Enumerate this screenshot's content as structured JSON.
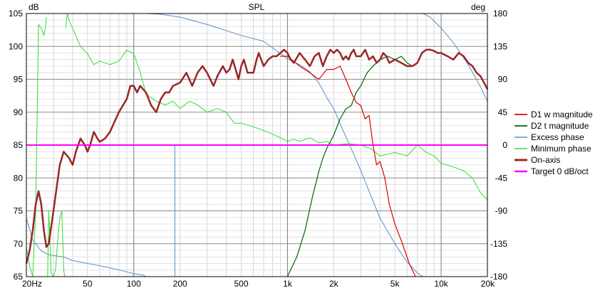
{
  "chart_data": {
    "type": "line",
    "title": "SPL",
    "y_left_label": "dB",
    "y_right_label": "deg",
    "x_scale": "log",
    "xlim": [
      20,
      20000
    ],
    "ylim": [
      65,
      105
    ],
    "y2lim": [
      -180,
      180
    ],
    "grid": true,
    "legend_position": "right",
    "x_ticks": [
      {
        "v": 20,
        "label": "20Hz"
      },
      {
        "v": 50,
        "label": "50"
      },
      {
        "v": 100,
        "label": "100"
      },
      {
        "v": 200,
        "label": "200"
      },
      {
        "v": 500,
        "label": "500"
      },
      {
        "v": 1000,
        "label": "1k"
      },
      {
        "v": 2000,
        "label": "2k"
      },
      {
        "v": 5000,
        "label": "5k"
      },
      {
        "v": 10000,
        "label": "10k"
      },
      {
        "v": 20000,
        "label": "20k"
      }
    ],
    "y_ticks": [
      65,
      70,
      75,
      80,
      85,
      90,
      95,
      100,
      105
    ],
    "y2_ticks": [
      -180,
      -135,
      -90,
      -45,
      0,
      45,
      90,
      135,
      180
    ],
    "series": [
      {
        "name": "D1 w magnitude",
        "color": "#e00000",
        "axis": "left",
        "width": 1.2,
        "points": [
          [
            900,
            98.5
          ],
          [
            1000,
            98.5
          ],
          [
            1200,
            97
          ],
          [
            1400,
            96
          ],
          [
            1600,
            95
          ],
          [
            1800,
            96.5
          ],
          [
            2000,
            96.5
          ],
          [
            2200,
            97
          ],
          [
            2400,
            95
          ],
          [
            2600,
            93
          ],
          [
            2800,
            91.5
          ],
          [
            3000,
            91
          ],
          [
            3200,
            89
          ],
          [
            3400,
            89.5
          ],
          [
            3600,
            85
          ],
          [
            3800,
            82
          ],
          [
            4000,
            82.5
          ],
          [
            4300,
            80
          ],
          [
            4600,
            76
          ],
          [
            5000,
            73
          ],
          [
            5600,
            70
          ],
          [
            6200,
            67
          ],
          [
            6800,
            65
          ]
        ]
      },
      {
        "name": "D2 t magnitude",
        "color": "#006400",
        "axis": "left",
        "width": 1.2,
        "points": [
          [
            1000,
            65
          ],
          [
            1150,
            68
          ],
          [
            1300,
            72
          ],
          [
            1450,
            77
          ],
          [
            1600,
            81
          ],
          [
            1700,
            83
          ],
          [
            1800,
            84.5
          ],
          [
            1900,
            85.5
          ],
          [
            2000,
            86.5
          ],
          [
            2200,
            89
          ],
          [
            2400,
            90.5
          ],
          [
            2600,
            91
          ],
          [
            2800,
            93
          ],
          [
            3000,
            94
          ],
          [
            3300,
            96
          ],
          [
            3600,
            97
          ],
          [
            4000,
            98
          ],
          [
            4500,
            98.5
          ],
          [
            5000,
            98
          ],
          [
            5500,
            98.5
          ],
          [
            6000,
            97.5
          ],
          [
            6500,
            97
          ],
          [
            7000,
            97.5
          ],
          [
            7500,
            99
          ],
          [
            8000,
            99.5
          ],
          [
            8500,
            99.5
          ],
          [
            9000,
            99.3
          ],
          [
            9500,
            99
          ],
          [
            10000,
            99
          ],
          [
            11000,
            98.5
          ],
          [
            12000,
            98
          ],
          [
            13000,
            99
          ],
          [
            14000,
            98.5
          ],
          [
            15000,
            97.5
          ],
          [
            16000,
            97
          ],
          [
            17000,
            96
          ],
          [
            18000,
            95.5
          ],
          [
            19000,
            94.5
          ],
          [
            20000,
            93.5
          ]
        ]
      },
      {
        "name": "Excess phase",
        "color": "#5b8fc7",
        "axis": "right",
        "width": 1.0,
        "points": [
          [
            20,
            -100
          ],
          [
            22,
            -130
          ],
          [
            25,
            -145
          ],
          [
            28,
            -150
          ],
          [
            32,
            -152
          ],
          [
            35,
            -153
          ],
          [
            40,
            -158
          ],
          [
            50,
            -162
          ],
          [
            60,
            -165
          ],
          [
            70,
            -168
          ],
          [
            85,
            -172
          ],
          [
            100,
            -176
          ],
          [
            115,
            -178
          ],
          [
            120,
            -180
          ],
          [
            120,
            180
          ],
          [
            150,
            179
          ],
          [
            200,
            175
          ],
          [
            300,
            165
          ],
          [
            500,
            150
          ],
          [
            700,
            142
          ],
          [
            1000,
            118
          ],
          [
            1200,
            110
          ],
          [
            1400,
            100
          ],
          [
            1600,
            85
          ],
          [
            1800,
            65
          ],
          [
            2000,
            50
          ],
          [
            2300,
            20
          ],
          [
            2600,
            -5
          ],
          [
            3000,
            -35
          ],
          [
            3500,
            -70
          ],
          [
            4000,
            -100
          ],
          [
            5000,
            -135
          ],
          [
            6000,
            -160
          ],
          [
            7000,
            -175
          ],
          [
            7600,
            -180
          ],
          [
            7600,
            180
          ],
          [
            8500,
            175
          ],
          [
            10000,
            160
          ],
          [
            12000,
            140
          ],
          [
            15000,
            110
          ],
          [
            18000,
            80
          ],
          [
            20000,
            60
          ]
        ]
      },
      {
        "name": "Minimum phase",
        "color": "#33dd33",
        "axis": "right",
        "width": 1.0,
        "points": [
          [
            20,
            -140
          ],
          [
            21,
            -165
          ],
          [
            22,
            -180
          ],
          [
            23,
            -90
          ],
          [
            24,
            165
          ],
          [
            25,
            160
          ],
          [
            26,
            150
          ],
          [
            26.5,
            160
          ],
          [
            27,
            175
          ],
          [
            27.5,
            -180
          ],
          [
            28,
            -90
          ],
          [
            29,
            -175
          ],
          [
            30,
            -180
          ],
          [
            31,
            -170
          ],
          [
            32,
            -130
          ],
          [
            33,
            -100
          ],
          [
            34,
            -90
          ],
          [
            35,
            -170
          ],
          [
            35.5,
            -180
          ],
          [
            36,
            160
          ],
          [
            37,
            180
          ],
          [
            38,
            170
          ],
          [
            40,
            160
          ],
          [
            45,
            135
          ],
          [
            50,
            125
          ],
          [
            55,
            110
          ],
          [
            60,
            115
          ],
          [
            70,
            110
          ],
          [
            80,
            115
          ],
          [
            90,
            130
          ],
          [
            100,
            125
          ],
          [
            110,
            100
          ],
          [
            120,
            70
          ],
          [
            140,
            60
          ],
          [
            160,
            55
          ],
          [
            180,
            60
          ],
          [
            200,
            50
          ],
          [
            230,
            60
          ],
          [
            260,
            55
          ],
          [
            300,
            45
          ],
          [
            350,
            50
          ],
          [
            400,
            45
          ],
          [
            450,
            30
          ],
          [
            500,
            30
          ],
          [
            600,
            25
          ],
          [
            700,
            20
          ],
          [
            800,
            15
          ],
          [
            900,
            10
          ],
          [
            1000,
            5
          ],
          [
            1100,
            8
          ],
          [
            1200,
            5
          ],
          [
            1400,
            10
          ],
          [
            1600,
            3
          ],
          [
            1800,
            5
          ],
          [
            2000,
            0
          ],
          [
            2500,
            2
          ],
          [
            3000,
            0
          ],
          [
            3500,
            -5
          ],
          [
            4000,
            -15
          ],
          [
            5000,
            -10
          ],
          [
            6000,
            -15
          ],
          [
            7000,
            0
          ],
          [
            8000,
            -10
          ],
          [
            9000,
            -15
          ],
          [
            10000,
            -25
          ],
          [
            12000,
            -30
          ],
          [
            14000,
            -35
          ],
          [
            16000,
            -45
          ],
          [
            18000,
            -65
          ],
          [
            20000,
            -75
          ]
        ]
      },
      {
        "name": "On-axis",
        "color": "#9b2626",
        "axis": "left",
        "width": 2.5,
        "points": [
          [
            20,
            67
          ],
          [
            21,
            69
          ],
          [
            22,
            72
          ],
          [
            23,
            76
          ],
          [
            24,
            78
          ],
          [
            25,
            76
          ],
          [
            26,
            72
          ],
          [
            27,
            69.5
          ],
          [
            28,
            70
          ],
          [
            30,
            75
          ],
          [
            33,
            82
          ],
          [
            35,
            84
          ],
          [
            38,
            83
          ],
          [
            40,
            82
          ],
          [
            42,
            84
          ],
          [
            45,
            86
          ],
          [
            48,
            85
          ],
          [
            50,
            84
          ],
          [
            52,
            85
          ],
          [
            55,
            87
          ],
          [
            58,
            86
          ],
          [
            60,
            85.5
          ],
          [
            65,
            86
          ],
          [
            70,
            87
          ],
          [
            80,
            90
          ],
          [
            90,
            92
          ],
          [
            95,
            94
          ],
          [
            100,
            94
          ],
          [
            105,
            93
          ],
          [
            110,
            94
          ],
          [
            120,
            93
          ],
          [
            130,
            91
          ],
          [
            140,
            90
          ],
          [
            150,
            92
          ],
          [
            160,
            93
          ],
          [
            170,
            93
          ],
          [
            180,
            94
          ],
          [
            200,
            94.5
          ],
          [
            220,
            96
          ],
          [
            240,
            94
          ],
          [
            260,
            96
          ],
          [
            280,
            97
          ],
          [
            300,
            96
          ],
          [
            330,
            94
          ],
          [
            350,
            95.5
          ],
          [
            380,
            97
          ],
          [
            400,
            96
          ],
          [
            420,
            96.5
          ],
          [
            440,
            98
          ],
          [
            460,
            96.5
          ],
          [
            480,
            95
          ],
          [
            500,
            97
          ],
          [
            520,
            98
          ],
          [
            550,
            96
          ],
          [
            600,
            96
          ],
          [
            630,
            98
          ],
          [
            650,
            99
          ],
          [
            700,
            97
          ],
          [
            750,
            98
          ],
          [
            800,
            98.5
          ],
          [
            850,
            98.5
          ],
          [
            900,
            99
          ],
          [
            950,
            99.5
          ],
          [
            1000,
            99
          ],
          [
            1050,
            98
          ],
          [
            1100,
            97.5
          ],
          [
            1200,
            99
          ],
          [
            1300,
            98
          ],
          [
            1400,
            97
          ],
          [
            1500,
            98.5
          ],
          [
            1600,
            99
          ],
          [
            1700,
            97
          ],
          [
            1800,
            98.5
          ],
          [
            1900,
            99.5
          ],
          [
            2000,
            99
          ],
          [
            2100,
            99.5
          ],
          [
            2200,
            99
          ],
          [
            2300,
            98
          ],
          [
            2400,
            98.5
          ],
          [
            2500,
            98
          ],
          [
            2600,
            99
          ],
          [
            2700,
            99.5
          ],
          [
            2800,
            98.5
          ],
          [
            3000,
            98.5
          ],
          [
            3200,
            99.5
          ],
          [
            3400,
            98
          ],
          [
            3600,
            98.5
          ],
          [
            3800,
            97.5
          ],
          [
            4000,
            98
          ],
          [
            4200,
            99
          ],
          [
            4400,
            98.5
          ],
          [
            4600,
            97.5
          ],
          [
            5000,
            98
          ],
          [
            5500,
            97.5
          ],
          [
            6000,
            97
          ],
          [
            6500,
            97
          ],
          [
            7000,
            97.5
          ],
          [
            7500,
            99
          ],
          [
            8000,
            99.5
          ],
          [
            8500,
            99.5
          ],
          [
            9000,
            99.3
          ],
          [
            9500,
            99
          ],
          [
            10000,
            99
          ],
          [
            11000,
            98.5
          ],
          [
            12000,
            98
          ],
          [
            13000,
            99
          ],
          [
            14000,
            98.5
          ],
          [
            15000,
            97.5
          ],
          [
            16000,
            97
          ],
          [
            17000,
            96
          ],
          [
            18000,
            95.5
          ],
          [
            19000,
            94.5
          ],
          [
            20000,
            93.5
          ]
        ]
      },
      {
        "name": "Target 0 dB/oct",
        "color": "#ff00ff",
        "axis": "left",
        "width": 2.0,
        "points": [
          [
            20,
            85
          ],
          [
            20000,
            85
          ]
        ]
      }
    ],
    "extra_lines": [
      {
        "color": "#4a4acc",
        "axis": "left",
        "width": 1.5,
        "points": [
          [
            20,
            85
          ],
          [
            185,
            85
          ]
        ]
      },
      {
        "color": "#5b8fc7",
        "axis": "left",
        "width": 1.0,
        "points": [
          [
            185,
            85
          ],
          [
            185,
            65
          ]
        ]
      }
    ]
  }
}
